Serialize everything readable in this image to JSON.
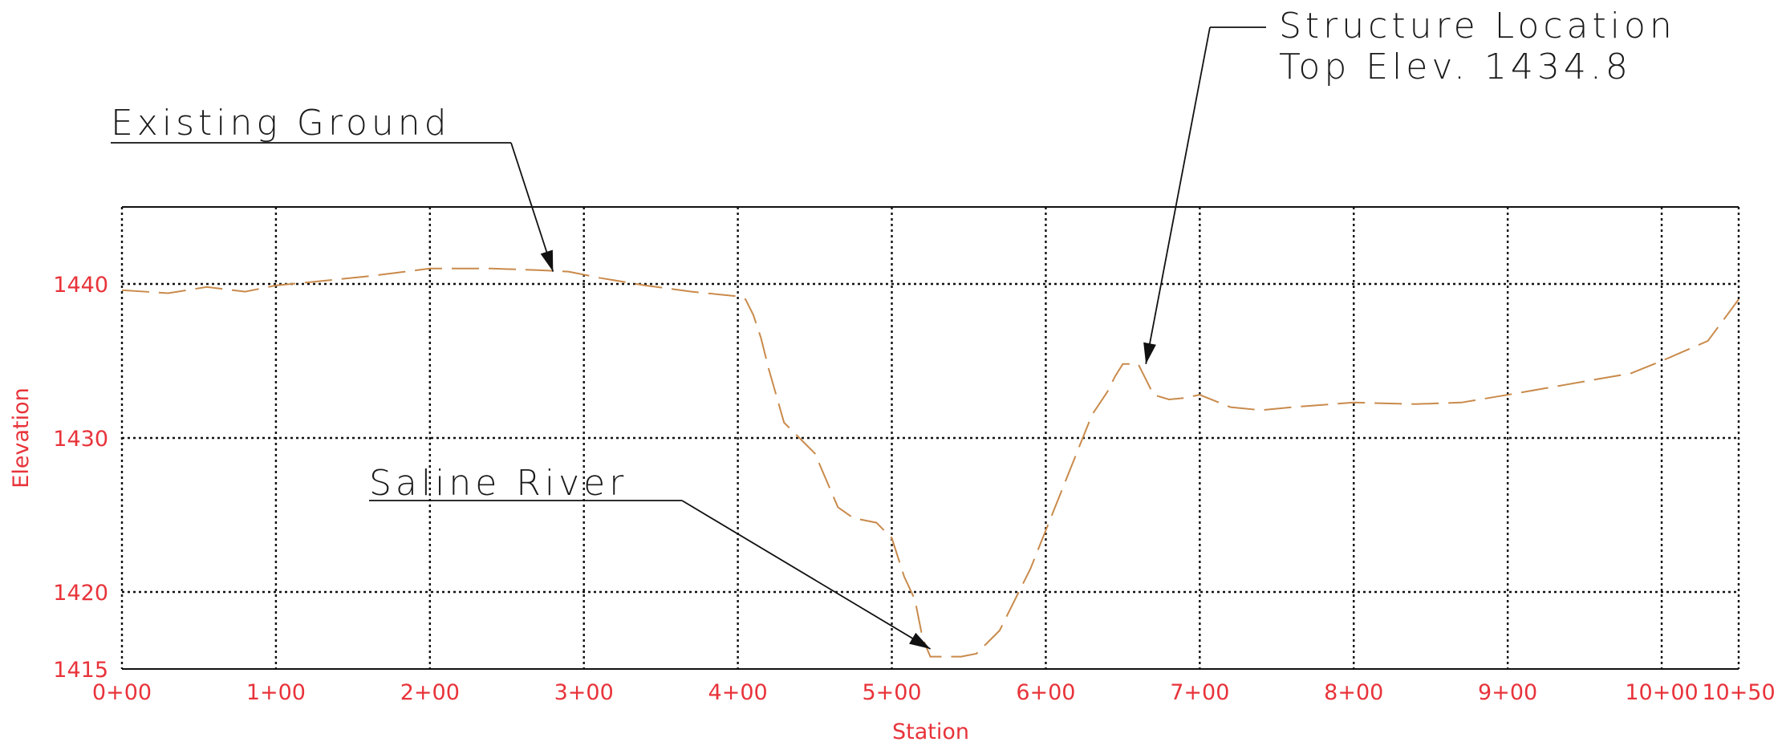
{
  "chart_data": {
    "type": "line",
    "title": "",
    "xlabel": "Station",
    "ylabel": "Elevation",
    "xlim": [
      0,
      1050
    ],
    "ylim": [
      1415,
      1445
    ],
    "x_ticks": [
      {
        "value": 0,
        "label": "0+00"
      },
      {
        "value": 100,
        "label": "1+00"
      },
      {
        "value": 200,
        "label": "2+00"
      },
      {
        "value": 300,
        "label": "3+00"
      },
      {
        "value": 400,
        "label": "4+00"
      },
      {
        "value": 500,
        "label": "5+00"
      },
      {
        "value": 600,
        "label": "6+00"
      },
      {
        "value": 700,
        "label": "7+00"
      },
      {
        "value": 800,
        "label": "8+00"
      },
      {
        "value": 900,
        "label": "9+00"
      },
      {
        "value": 1000,
        "label": "10+00"
      },
      {
        "value": 1050,
        "label": "10+50"
      }
    ],
    "y_ticks": [
      {
        "value": 1415,
        "label": "1415"
      },
      {
        "value": 1420,
        "label": "1420"
      },
      {
        "value": 1430,
        "label": "1430"
      },
      {
        "value": 1440,
        "label": "1440"
      }
    ],
    "grid": true,
    "series": [
      {
        "color": "#c98a4b",
        "line_style": "dashed",
        "x": [
          0,
          30,
          55,
          80,
          100,
          130,
          160,
          200,
          240,
          270,
          290,
          310,
          340,
          370,
          400,
          405,
          410,
          415,
          420,
          430,
          435,
          450,
          465,
          475,
          490,
          500,
          508,
          515,
          520,
          525,
          530,
          545,
          555,
          560,
          570,
          580,
          590,
          600,
          610,
          620,
          630,
          640,
          645,
          650,
          660,
          670,
          680,
          690,
          700,
          720,
          740,
          760,
          800,
          840,
          870,
          900,
          940,
          980,
          1000,
          1030,
          1050
        ],
        "y": [
          1439.6,
          1439.4,
          1439.8,
          1439.5,
          1439.9,
          1440.2,
          1440.5,
          1441.0,
          1441.0,
          1440.9,
          1440.8,
          1440.4,
          1439.9,
          1439.5,
          1439.2,
          1439.0,
          1438.0,
          1436.5,
          1434.5,
          1431.0,
          1430.5,
          1429.0,
          1425.5,
          1424.8,
          1424.5,
          1423.5,
          1421.0,
          1419.5,
          1417.0,
          1415.8,
          1415.8,
          1415.8,
          1416.0,
          1416.5,
          1417.5,
          1419.5,
          1421.5,
          1424.0,
          1426.5,
          1429.0,
          1431.5,
          1433.0,
          1434.0,
          1434.8,
          1434.8,
          1432.8,
          1432.5,
          1432.6,
          1432.8,
          1432.0,
          1431.8,
          1432.0,
          1432.3,
          1432.2,
          1432.3,
          1432.8,
          1433.5,
          1434.2,
          1435.0,
          1436.3,
          1439.0
        ]
      }
    ],
    "annotations": [
      {
        "lines": [
          "Existing Ground"
        ],
        "target_x": 280,
        "target_y": 1440.8
      },
      {
        "lines": [
          "Saline River"
        ],
        "target_x": 525,
        "target_y": 1416.3
      },
      {
        "lines": [
          "Structure Location",
          "Top Elev. 1434.8"
        ],
        "target_x": 665,
        "target_y": 1434.8
      }
    ]
  }
}
